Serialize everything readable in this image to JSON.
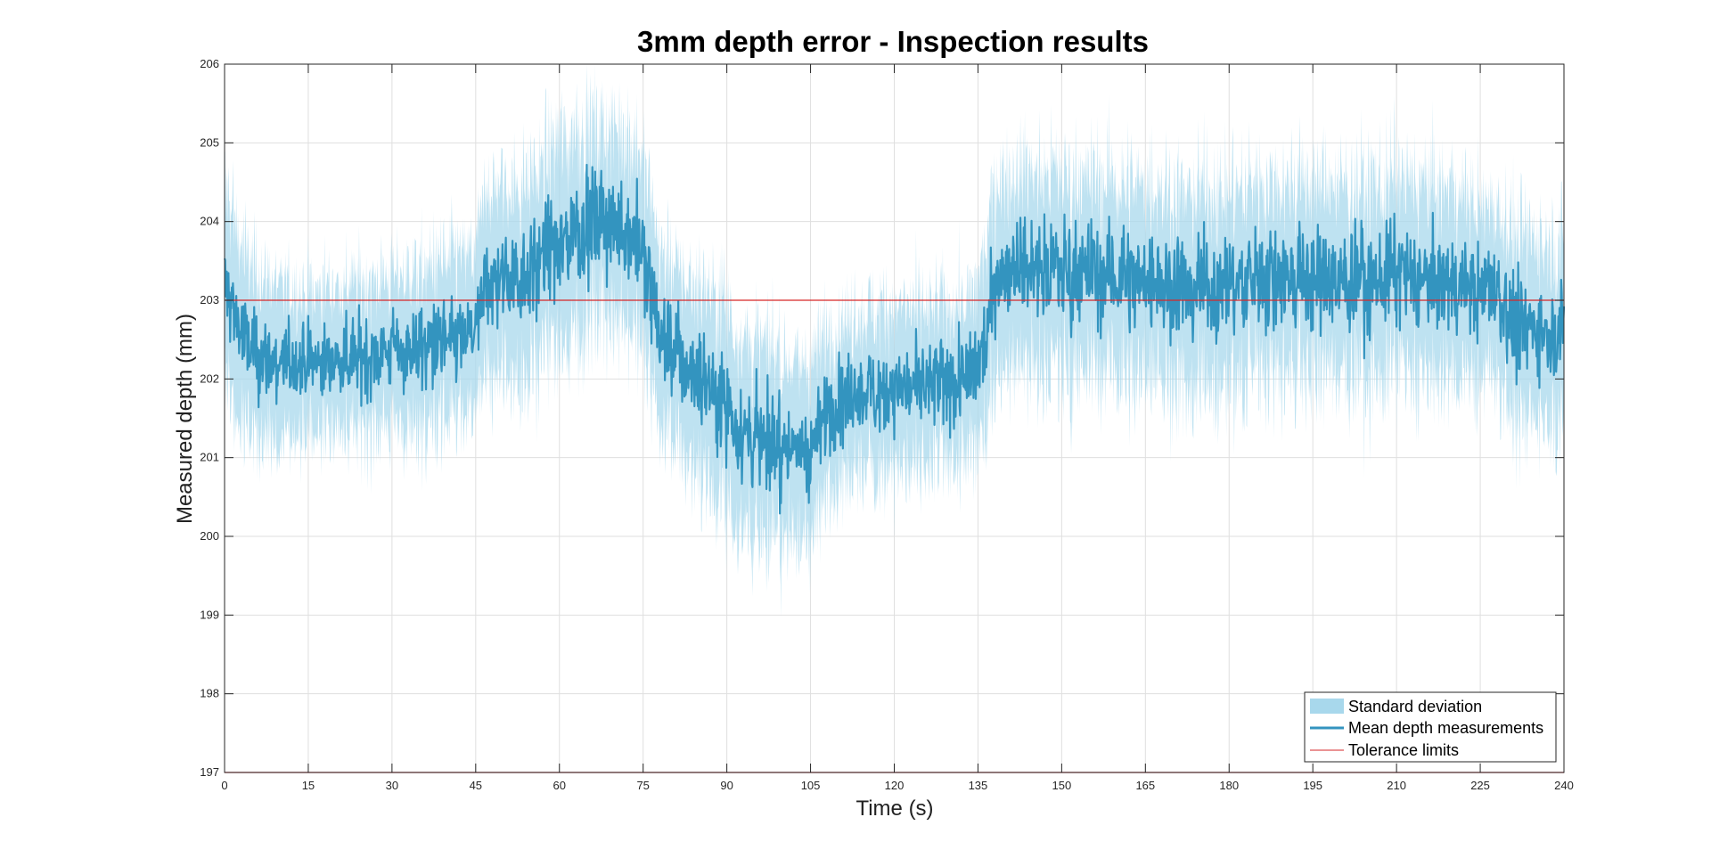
{
  "chart_data": {
    "type": "line",
    "title": "3mm depth error - Inspection results",
    "xlabel": "Time (s)",
    "ylabel": "Measured depth (mm)",
    "xlim": [
      0,
      240
    ],
    "ylim": [
      197,
      206
    ],
    "xticks": [
      0,
      15,
      30,
      45,
      60,
      75,
      90,
      105,
      120,
      135,
      150,
      165,
      180,
      195,
      210,
      225,
      240
    ],
    "yticks": [
      197,
      198,
      199,
      200,
      201,
      202,
      203,
      204,
      205,
      206
    ],
    "grid": true,
    "legend_position": "bottom-right",
    "colors": {
      "std_band": "#a8d8ec",
      "mean_line": "#3394bf",
      "tolerance": "#d62728",
      "grid": "#dfdfdf",
      "axes": "#262626"
    },
    "series": [
      {
        "name": "Mean depth measurements",
        "x": [
          0,
          2,
          4,
          8,
          15,
          25,
          35,
          42,
          45,
          47,
          52,
          57,
          60,
          63,
          67,
          72,
          74,
          76,
          78,
          82,
          86,
          90,
          93,
          97,
          102,
          105,
          108,
          113,
          120,
          128,
          134,
          136,
          138,
          142,
          150,
          160,
          170,
          180,
          190,
          200,
          210,
          220,
          225,
          228,
          231,
          235,
          238,
          240
        ],
        "y": [
          203.2,
          202.8,
          202.4,
          202.2,
          202.2,
          202.3,
          202.4,
          202.5,
          202.6,
          203.2,
          203.3,
          203.5,
          203.7,
          203.9,
          204.0,
          203.9,
          203.8,
          203.2,
          202.6,
          202.2,
          202.0,
          201.7,
          201.3,
          201.2,
          201.1,
          201.1,
          201.6,
          201.8,
          201.9,
          201.9,
          202.0,
          202.4,
          203.3,
          203.5,
          203.4,
          203.3,
          203.2,
          203.2,
          203.3,
          203.2,
          203.3,
          203.2,
          203.1,
          203.1,
          202.6,
          202.7,
          202.6,
          202.7
        ],
        "spread": [
          0.6,
          0.6,
          0.55,
          0.5,
          0.45,
          0.45,
          0.5,
          0.5,
          0.5,
          0.6,
          0.6,
          0.6,
          0.65,
          0.65,
          0.6,
          0.6,
          0.6,
          0.6,
          0.55,
          0.55,
          0.6,
          0.6,
          0.6,
          0.6,
          0.55,
          0.55,
          0.5,
          0.5,
          0.5,
          0.5,
          0.5,
          0.55,
          0.6,
          0.6,
          0.6,
          0.6,
          0.6,
          0.6,
          0.6,
          0.6,
          0.6,
          0.6,
          0.55,
          0.55,
          0.6,
          0.55,
          0.55,
          0.55
        ]
      },
      {
        "name": "Standard deviation",
        "std_multiplier": 2.6
      },
      {
        "name": "Tolerance limits",
        "y_values": [
          203,
          197
        ]
      }
    ],
    "legend": [
      "Standard deviation",
      "Mean depth measurements",
      "Tolerance limits"
    ]
  }
}
